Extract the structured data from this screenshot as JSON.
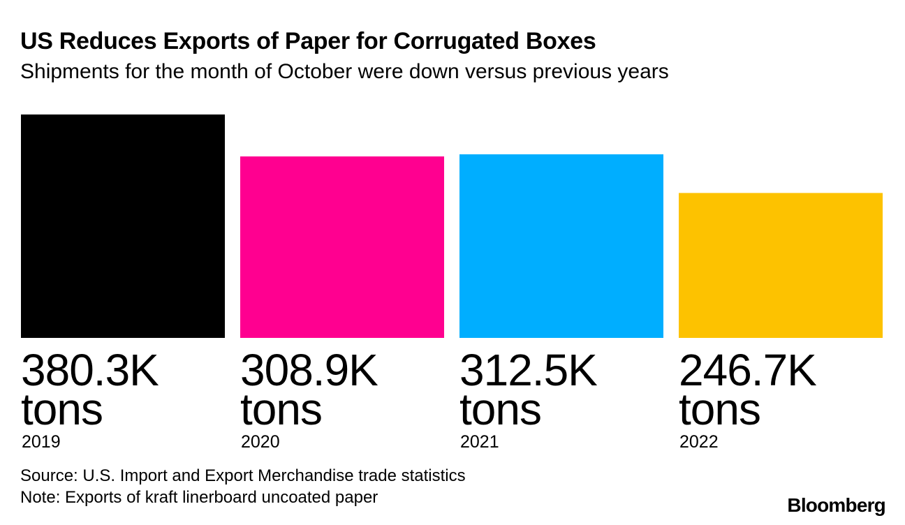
{
  "header": {
    "title": "US Reduces Exports of Paper for Corrugated Boxes",
    "subtitle": "Shipments for the month of October were down versus previous years"
  },
  "chart_data": {
    "type": "bar",
    "title": "US Reduces Exports of Paper for Corrugated Boxes",
    "subtitle": "Shipments for the month of October were down versus previous years",
    "categories": [
      "2019",
      "2020",
      "2021",
      "2022"
    ],
    "values": [
      380.3,
      308.9,
      312.5,
      246.7
    ],
    "value_labels": [
      "380.3K",
      "308.9K",
      "312.5K",
      "246.7K"
    ],
    "unit_label": "tons",
    "units": "thousand tons",
    "colors": [
      "#000000",
      "#ff0090",
      "#00aeff",
      "#fdc200"
    ],
    "xlabel": "",
    "ylabel": "",
    "ylim": [
      0,
      380.3
    ],
    "grid": false,
    "legend": "none"
  },
  "footer": {
    "source": "Source: U.S. Import and Export Merchandise trade statistics",
    "note": "Note: Exports of kraft linerboard uncoated paper",
    "brand": "Bloomberg"
  }
}
